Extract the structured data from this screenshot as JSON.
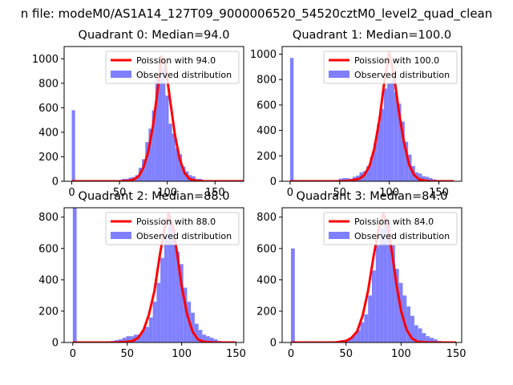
{
  "suptitle": "n file: modeM0/AS1A14_127T09_9000006520_54520cztM0_level2_quad_clean",
  "colors": {
    "poisson": "#ff0000",
    "observed": "#8080ff",
    "axis": "#000000"
  },
  "chart_data": [
    {
      "type": "bar+line",
      "title": "Quadrant 0: Median=94.0",
      "legend_position": "top-right",
      "legend": [
        "Poission with 94.0",
        "Observed distribution"
      ],
      "median": 94.0,
      "peak_count": 1020,
      "xlim": [
        -8,
        180
      ],
      "ylim": [
        0,
        1100
      ],
      "xticks": [
        0,
        50,
        100,
        150
      ],
      "xtick_labels": [
        "0",
        "50",
        "100",
        "150"
      ],
      "yticks": [
        0,
        200,
        400,
        600,
        800,
        1000
      ],
      "ytick_labels": [
        "0",
        "200",
        "400",
        "600",
        "800",
        "1000"
      ],
      "bin_width": 3.5,
      "hist_x": [
        0,
        38.5,
        42,
        45.5,
        49,
        52.5,
        56,
        59.5,
        63,
        66.5,
        70,
        73.5,
        77,
        80.5,
        84,
        87.5,
        91,
        94.5,
        98,
        101.5,
        105,
        108.5,
        112,
        115.5,
        119,
        122.5,
        126,
        129.5,
        133,
        136.5,
        140,
        143.5,
        147,
        150.5
      ],
      "hist_y": [
        580,
        5,
        5,
        10,
        10,
        20,
        20,
        30,
        35,
        50,
        110,
        180,
        320,
        430,
        580,
        850,
        1000,
        930,
        700,
        470,
        390,
        270,
        220,
        120,
        80,
        50,
        40,
        20,
        20,
        10,
        5,
        5,
        5,
        3
      ],
      "poisson_x": [
        0,
        40,
        50,
        60,
        65,
        70,
        75,
        80,
        85,
        90,
        94,
        98,
        103,
        108,
        113,
        118,
        123,
        130,
        140,
        180
      ],
      "poisson_y": [
        0,
        0,
        0,
        5,
        15,
        40,
        110,
        240,
        450,
        750,
        1020,
        950,
        660,
        380,
        180,
        70,
        20,
        5,
        0,
        0
      ]
    },
    {
      "type": "bar+line",
      "title": "Quadrant 1: Median=100.0",
      "legend_position": "top-right",
      "legend": [
        "Poission with 100.0",
        "Observed distribution"
      ],
      "median": 100.0,
      "peak_count": 1010,
      "xlim": [
        -8,
        173
      ],
      "ylim": [
        0,
        1060
      ],
      "xticks": [
        0,
        50,
        100,
        150
      ],
      "xtick_labels": [
        "0",
        "50",
        "100",
        "150"
      ],
      "yticks": [
        0,
        200,
        400,
        600,
        800,
        1000
      ],
      "ytick_labels": [
        "0",
        "200",
        "400",
        "600",
        "800",
        "1000"
      ],
      "bin_width": 3.5,
      "hist_x": [
        0,
        45.5,
        49,
        52.5,
        56,
        59.5,
        63,
        66.5,
        70,
        73.5,
        77,
        80.5,
        84,
        87.5,
        91,
        94.5,
        98,
        101.5,
        105,
        108.5,
        112,
        115.5,
        119,
        122.5,
        126,
        129.5,
        133,
        136.5,
        140,
        143.5,
        147,
        150.5,
        154,
        157.5,
        161
      ],
      "hist_y": [
        970,
        10,
        20,
        25,
        25,
        20,
        35,
        45,
        70,
        80,
        120,
        190,
        300,
        450,
        570,
        730,
        770,
        800,
        700,
        610,
        470,
        310,
        210,
        120,
        70,
        60,
        40,
        35,
        25,
        15,
        10,
        10,
        5,
        5,
        3
      ],
      "poisson_x": [
        0,
        50,
        60,
        70,
        75,
        80,
        85,
        90,
        95,
        100,
        105,
        110,
        115,
        120,
        125,
        130,
        140,
        165
      ],
      "poisson_y": [
        0,
        0,
        5,
        20,
        50,
        120,
        260,
        480,
        780,
        1010,
        820,
        530,
        300,
        130,
        50,
        15,
        0,
        0
      ]
    },
    {
      "type": "bar+line",
      "title": "Quadrant 2: Median=88.0",
      "legend_position": "top-right",
      "legend": [
        "Poission with 88.0",
        "Observed distribution"
      ],
      "median": 88.0,
      "peak_count": 820,
      "xlim": [
        -8,
        157
      ],
      "ylim": [
        0,
        860
      ],
      "xticks": [
        0,
        50,
        100,
        150
      ],
      "xtick_labels": [
        "0",
        "50",
        "100",
        "150"
      ],
      "yticks": [
        0,
        200,
        400,
        600,
        800
      ],
      "ytick_labels": [
        "0",
        "200",
        "400",
        "600",
        "800"
      ],
      "bin_width": 3.5,
      "hist_x": [
        0,
        31.5,
        35,
        38.5,
        42,
        45.5,
        49,
        52.5,
        56,
        59.5,
        63,
        66.5,
        70,
        73.5,
        77,
        80.5,
        84,
        87.5,
        91,
        94.5,
        98,
        101.5,
        105,
        108.5,
        112,
        115.5,
        119,
        122.5,
        126,
        129.5,
        133
      ],
      "hist_y": [
        860,
        5,
        10,
        15,
        20,
        30,
        40,
        40,
        50,
        50,
        80,
        100,
        160,
        260,
        380,
        540,
        680,
        800,
        730,
        580,
        500,
        350,
        260,
        190,
        120,
        80,
        50,
        40,
        30,
        20,
        10
      ],
      "poisson_x": [
        0,
        40,
        50,
        55,
        60,
        65,
        70,
        75,
        80,
        84,
        88,
        92,
        96,
        100,
        105,
        110,
        115,
        120,
        130,
        150
      ],
      "poisson_y": [
        0,
        0,
        5,
        10,
        30,
        80,
        180,
        330,
        560,
        720,
        820,
        740,
        560,
        360,
        180,
        70,
        20,
        5,
        0,
        0
      ]
    },
    {
      "type": "bar+line",
      "title": "Quadrant 3: Median=84.0",
      "legend_position": "top-right",
      "legend": [
        "Poission with 84.0",
        "Observed distribution"
      ],
      "median": 84.0,
      "peak_count": 820,
      "xlim": [
        -8,
        155
      ],
      "ylim": [
        0,
        860
      ],
      "xticks": [
        0,
        50,
        100,
        150
      ],
      "xtick_labels": [
        "0",
        "50",
        "100",
        "150"
      ],
      "yticks": [
        0,
        200,
        400,
        600,
        800
      ],
      "ytick_labels": [
        "0",
        "200",
        "400",
        "600",
        "800"
      ],
      "bin_width": 3.5,
      "hist_x": [
        0,
        45.5,
        49,
        52.5,
        56,
        59.5,
        63,
        66.5,
        70,
        73.5,
        77,
        80.5,
        84,
        87.5,
        91,
        94.5,
        98,
        101.5,
        105,
        108.5,
        112,
        115.5,
        119,
        122.5,
        126,
        129.5,
        133,
        136.5,
        140,
        143.5
      ],
      "hist_y": [
        600,
        10,
        20,
        30,
        50,
        80,
        130,
        180,
        300,
        460,
        620,
        730,
        800,
        760,
        620,
        470,
        380,
        300,
        230,
        170,
        110,
        90,
        60,
        40,
        30,
        20,
        10,
        8,
        5,
        3
      ],
      "poisson_x": [
        0,
        40,
        45,
        50,
        55,
        60,
        65,
        70,
        75,
        80,
        84,
        88,
        92,
        96,
        100,
        105,
        110,
        115,
        125,
        150
      ],
      "poisson_y": [
        0,
        0,
        5,
        10,
        30,
        70,
        170,
        330,
        550,
        740,
        820,
        740,
        560,
        360,
        200,
        80,
        25,
        5,
        0,
        0
      ]
    }
  ]
}
